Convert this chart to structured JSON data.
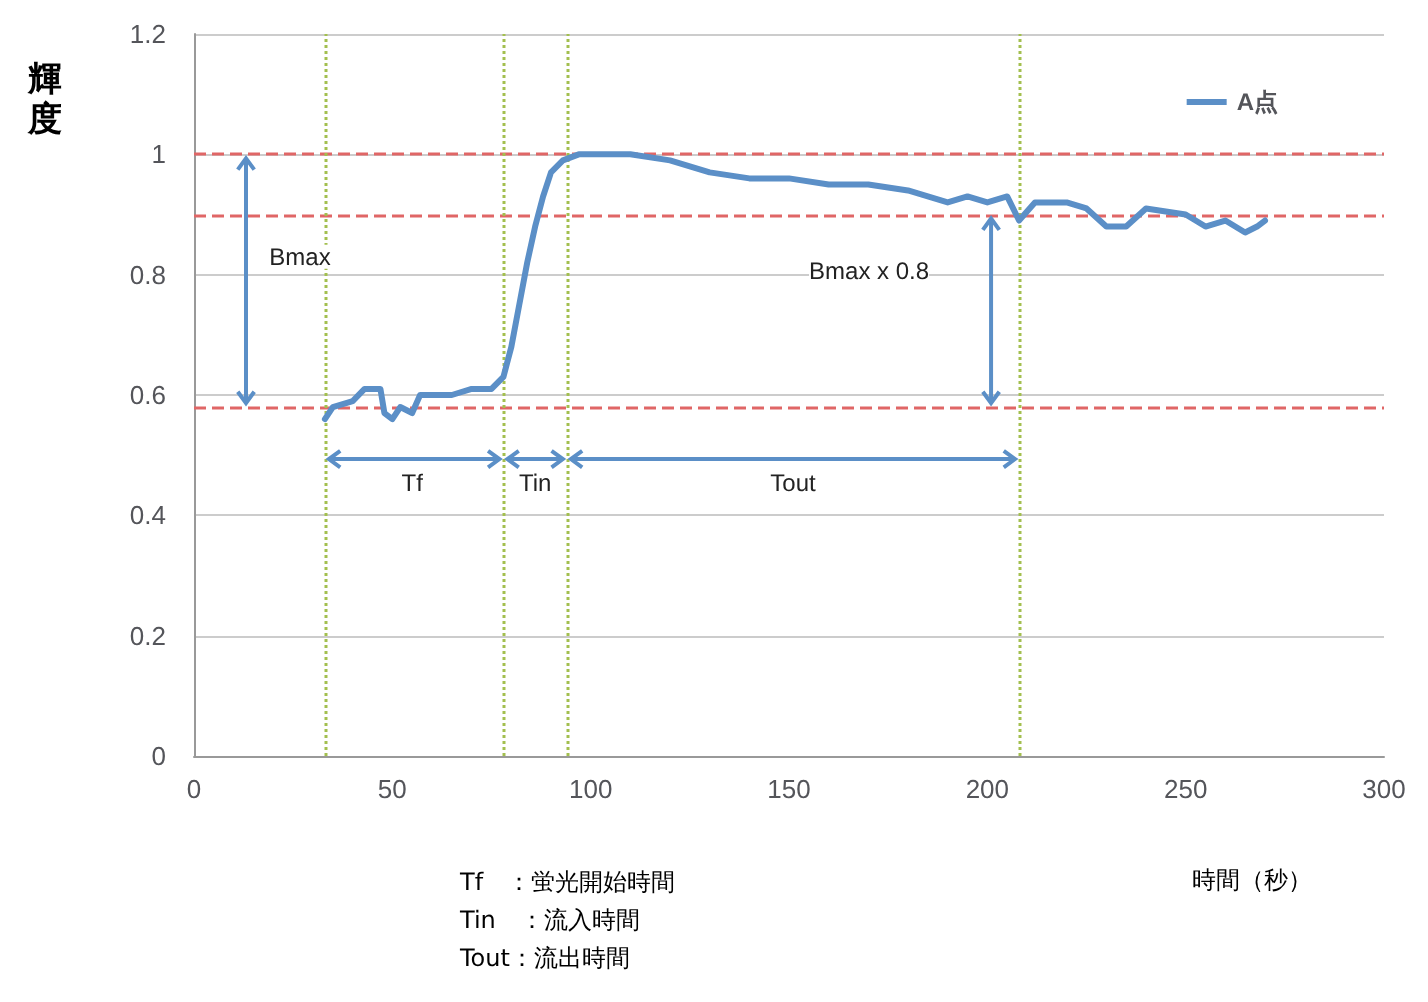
{
  "chart_data": {
    "type": "line",
    "xlabel": "時間（秒）",
    "ylabel": "輝度",
    "xlim": [
      0,
      300
    ],
    "xticks": [
      0,
      50,
      100,
      150,
      200,
      250,
      300
    ],
    "ylim": [
      0,
      1.2
    ],
    "yticks": [
      0,
      0.2,
      0.4,
      0.6,
      0.8,
      1,
      1.2
    ],
    "grid": "y",
    "legend": "top right",
    "marker": "none",
    "line_style": "solid",
    "series": [
      {
        "name": "A点",
        "color": "#5b8fc7",
        "x": [
          33,
          35,
          40,
          43,
          47,
          48,
          50,
          52,
          55,
          57,
          60,
          65,
          70,
          75,
          78,
          80,
          82,
          84,
          86,
          88,
          90,
          93,
          97,
          110,
          120,
          130,
          140,
          150,
          160,
          170,
          180,
          185,
          190,
          195,
          200,
          205,
          208,
          212,
          220,
          225,
          230,
          235,
          240,
          250,
          255,
          260,
          265,
          268,
          270
        ],
        "values": [
          0.56,
          0.58,
          0.59,
          0.61,
          0.61,
          0.57,
          0.56,
          0.58,
          0.57,
          0.6,
          0.6,
          0.6,
          0.61,
          0.61,
          0.63,
          0.68,
          0.75,
          0.82,
          0.88,
          0.93,
          0.97,
          0.99,
          1,
          1,
          0.99,
          0.97,
          0.96,
          0.96,
          0.95,
          0.95,
          0.94,
          0.93,
          0.92,
          0.93,
          0.92,
          0.93,
          0.89,
          0.92,
          0.92,
          0.91,
          0.88,
          0.88,
          0.91,
          0.9,
          0.88,
          0.89,
          0.87,
          0.88,
          0.89
        ]
      }
    ],
    "ref_lines": [
      {
        "axis": "y",
        "value": 1,
        "color": "#e06666",
        "line_style": "dashed"
      },
      {
        "axis": "y",
        "value": 0.9,
        "color": "#e06666",
        "line_style": "dashed"
      },
      {
        "axis": "y",
        "value": 0.58,
        "color": "#e06666",
        "line_style": "dashed"
      },
      {
        "axis": "x",
        "value": 33,
        "color": "#a3bf4f",
        "line_style": "dotted"
      },
      {
        "axis": "x",
        "value": 78,
        "color": "#a3bf4f",
        "line_style": "dotted"
      },
      {
        "axis": "x",
        "value": 94,
        "color": "#a3bf4f",
        "line_style": "dotted"
      },
      {
        "axis": "x",
        "value": 208,
        "color": "#a3bf4f",
        "line_style": "dotted"
      }
    ],
    "annotations": [
      "Bmax",
      "Bmax x 0.8",
      {
        "text": "Tf",
        "x": 55,
        "y": 0.58
      },
      {
        "text": "Tin",
        "x": 86,
        "y": 0.58
      },
      {
        "text": "Tout",
        "x": 151,
        "y": 0.58
      },
      "Tf　：蛍光開始時間",
      "Tin　：流入時間",
      "Tout：流出時間"
    ]
  }
}
